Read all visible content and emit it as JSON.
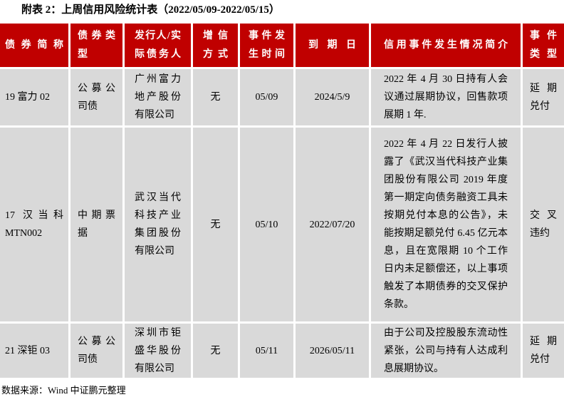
{
  "page": {
    "title": "附表 2：上周信用风险统计表（2022/05/09-2022/05/15）",
    "source_note": "数据来源：Wind 中证鹏元整理"
  },
  "colors": {
    "header_bg": "#c00000",
    "header_text": "#ffffff",
    "cell_bg": "#d9d9d9",
    "body_text": "#000000",
    "page_bg": "#ffffff"
  },
  "table": {
    "headers": [
      "债券简称",
      "债券类型",
      "发行人/实际债务人",
      "增信方式",
      "事件发生时间",
      "到期日",
      "信用事件发生情况简介",
      "事件类型"
    ],
    "rows": [
      {
        "bond_name": "19 富力 02",
        "bond_type": "公募公司债",
        "issuer": "广州富力地产股份有限公司",
        "credit_enhancement": "无",
        "event_date": "05/09",
        "maturity_date": "2024/5/9",
        "event_summary": "2022 年 4 月 30 日持有人会议通过展期协议，回售款项展期 1 年.",
        "event_type": "延期兑付"
      },
      {
        "bond_name": "17 汉当科 MTN002",
        "bond_type": "中期票据",
        "issuer": "武汉当代科技产业集团股份有限公司",
        "credit_enhancement": "无",
        "event_date": "05/10",
        "maturity_date": "2022/07/20",
        "event_summary": "2022 年 4 月 22 日发行人披露了《武汉当代科技产业集团股份有限公司 2019 年度第一期定向债务融资工具未按期兑付本息的公告》，未能按期足额兑付 6.45 亿元本息，且在宽限期 10 个工作日内未足额偿还，以上事项触发了本期债券的交叉保护条款。",
        "event_type": "交叉违约"
      },
      {
        "bond_name": "21 深钜 03",
        "bond_type": "公募公司债",
        "issuer": "深圳市钜盛华股份有限公司",
        "credit_enhancement": "无",
        "event_date": "05/11",
        "maturity_date": "2026/05/11",
        "event_summary": "由于公司及控股股东流动性紧张，公司与持有人达成利息展期协议。",
        "event_type": "延期兑付"
      }
    ]
  }
}
